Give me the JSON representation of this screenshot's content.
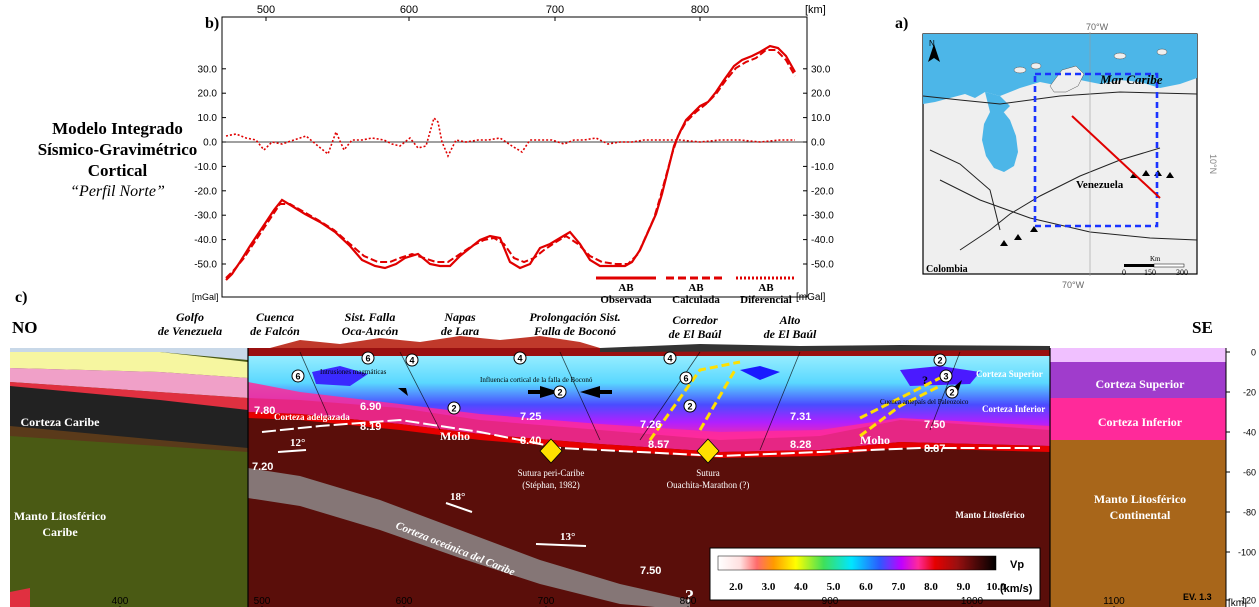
{
  "panel_labels": {
    "a": "a)",
    "b": "b)",
    "c": "c)"
  },
  "title": {
    "line1": "Modelo Integrado",
    "line2": "Sísmico-Gravimétrico",
    "line3": "Cortical",
    "line4": "“Perfil Norte”"
  },
  "gravity": {
    "top_axis_ticks": [
      "500",
      "600",
      "700",
      "800"
    ],
    "top_axis_unit": "[km]",
    "left_ticks": [
      "30.0",
      "20.0",
      "10.0",
      "0.0",
      "-10.0",
      "-20.0",
      "-30.0",
      "-40.0",
      "-50.0"
    ],
    "right_ticks": [
      "30.0",
      "20.0",
      "10.0",
      "0.0",
      "-10.0",
      "-20.0",
      "-30.0",
      "-40.0",
      "-50.0"
    ],
    "left_unit": "[mGal]",
    "right_unit": "[mGal]",
    "legend": [
      {
        "line1": "AB",
        "line2": "Observada",
        "style": "solid"
      },
      {
        "line1": "AB",
        "line2": "Calculada",
        "style": "dashed"
      },
      {
        "line1": "AB",
        "line2": "Diferencial",
        "style": "dotted"
      }
    ],
    "color": "#e00000"
  },
  "map": {
    "lon_label_top": "70°W",
    "lon_label_bottom": "70°W",
    "lat_label": "10°N",
    "north": "N",
    "sea_label": "Mar Caribe",
    "country1": "Venezuela",
    "country2": "Colombia",
    "scale_ticks": [
      "0",
      "150",
      "300"
    ],
    "scale_unit": "Km"
  },
  "section": {
    "left_end": "NO",
    "right_end": "SE",
    "features": [
      {
        "line1": "Golfo",
        "line2": "de Venezuela"
      },
      {
        "line1": "Cuenca",
        "line2": "de Falcón"
      },
      {
        "line1": "Sist. Falla",
        "line2": "Oca-Ancón"
      },
      {
        "line1": "Napas",
        "line2": "de Lara"
      },
      {
        "line1": "Prolongación Sist.",
        "line2": "Falla de Boconó"
      },
      {
        "line1": "Corredor",
        "line2": "de El Baúl"
      },
      {
        "line1": "Alto",
        "line2": "de El Baúl"
      }
    ],
    "x_ticks": [
      "400",
      "500",
      "600",
      "700",
      "800",
      "900",
      "1000",
      "1100"
    ],
    "x_unit": "[km]",
    "y_ticks": [
      "0",
      "-20",
      "-40",
      "-60",
      "-80",
      "-100",
      "-120"
    ],
    "left_units": {
      "corteza": "Corteza Caribe",
      "manto1": "Manto Litosférico",
      "manto2": "Caribe"
    },
    "right_units": {
      "superior": "Corteza Superior",
      "inferior": "Corteza Inferior",
      "manto1": "Manto Litosférico",
      "manto2": "Continental"
    },
    "inner": {
      "corteza_superior": "Corteza Superior",
      "corteza_inferior": "Corteza Inferior",
      "manto": "Manto Litosférico",
      "moho": "Moho",
      "adelgazada": "Corteza adelgazada",
      "oceanica": "Corteza oceánica del Caribe",
      "intrusiones": "Intrusiones magmáticas",
      "influencia": "Influencia cortical de la falla de Boconó",
      "cuenca_paleo": "Cuenca antepaís del Paleozoico",
      "sutura1_l1": "Sutura peri-Caribe",
      "sutura1_l2": "(Stéphan, 1982)",
      "sutura2_l1": "Sutura",
      "sutura2_l2": "Ouachita-Marathon (?)",
      "question": "?"
    },
    "velocities": [
      "7.80",
      "6.90",
      "8.19",
      "7.25",
      "8.40",
      "7.26",
      "8.57",
      "7.31",
      "8.28",
      "7.50",
      "8.87",
      "7.20",
      "7.50"
    ],
    "circles": [
      "6",
      "4",
      "2",
      "6",
      "4",
      "2",
      "6",
      "2",
      "4",
      "2",
      "3",
      "2"
    ],
    "angles": [
      "12°",
      "18°",
      "13°"
    ],
    "colorbar": {
      "ticks": [
        "2.0",
        "3.0",
        "4.0",
        "5.0",
        "6.0",
        "7.0",
        "8.0",
        "9.0",
        "10.0"
      ],
      "unit": "(km/s)",
      "label": "Vp"
    },
    "version": "EV. 1.3"
  }
}
